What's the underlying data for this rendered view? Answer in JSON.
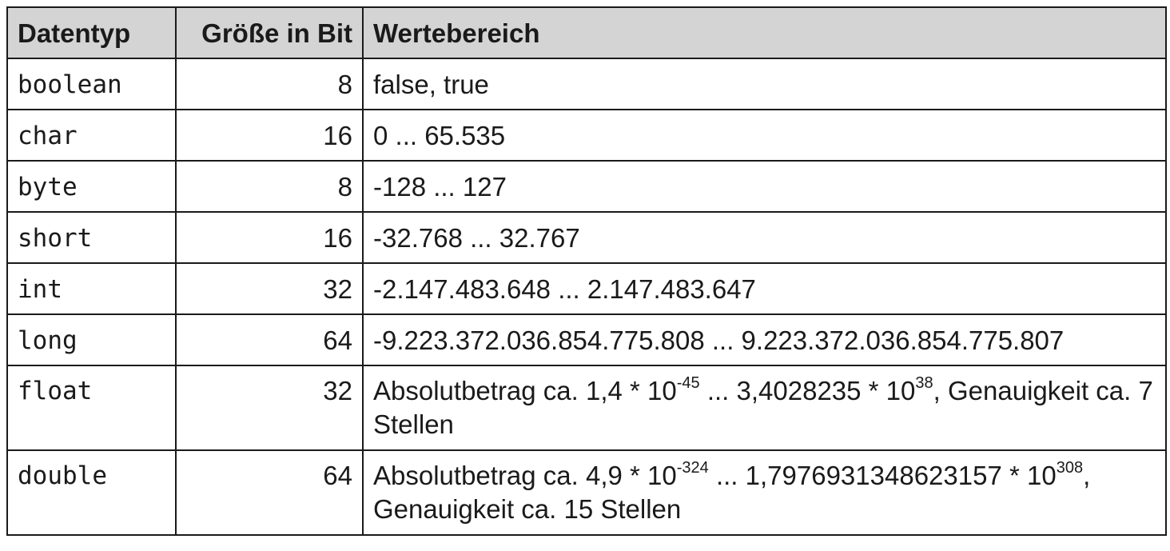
{
  "table": {
    "headers": [
      "Datentyp",
      "Größe in Bit",
      "Wertebereich"
    ],
    "rows": [
      {
        "type": "boolean",
        "size": "8",
        "range": "false, true"
      },
      {
        "type": "char",
        "size": "16",
        "range": "0 ... 65.535"
      },
      {
        "type": "byte",
        "size": "8",
        "range": "-128 ... 127"
      },
      {
        "type": "short",
        "size": "16",
        "range": "-32.768 ... 32.767"
      },
      {
        "type": "int",
        "size": "32",
        "range": "-2.147.483.648 ... 2.147.483.647"
      },
      {
        "type": "long",
        "size": "64",
        "range": "-9.223.372.036.854.775.808 ... 9.223.372.036.854.775.807"
      },
      {
        "type": "float",
        "size": "32",
        "range_parts": {
          "p1": "Absolutbetrag ca. 1,4 * 10",
          "e1": "-45",
          "p2": " ... 3,4028235 * 10",
          "e2": "38",
          "p3": ", Genauigkeit ca. 7 Stellen"
        }
      },
      {
        "type": "double",
        "size": "64",
        "range_parts": {
          "p1": "Absolutbetrag ca. 4,9 * 10",
          "e1": "-324",
          "p2": " ... 1,7976931348623157 * 10",
          "e2": "308",
          "p3": ", Genauigkeit ca. 15 Stellen"
        }
      }
    ]
  }
}
